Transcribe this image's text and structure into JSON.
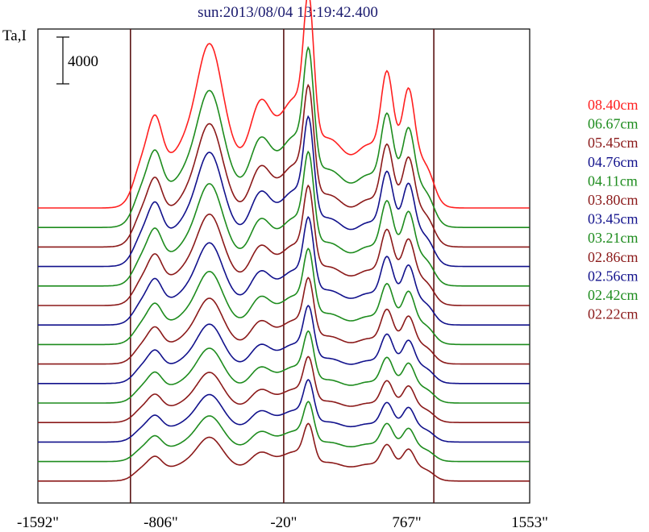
{
  "chart_data": {
    "type": "line",
    "title": "sun:2013/08/04 13:19:42.400",
    "ylabel": "Ta,I",
    "scale_bar_label": "4000",
    "xlim": [
      -1592,
      1553
    ],
    "x_ticks": [
      {
        "value": -1592,
        "label": "-1592\""
      },
      {
        "value": -806,
        "label": "-806\""
      },
      {
        "value": -20,
        "label": "-20\""
      },
      {
        "value": 767,
        "label": "767\""
      },
      {
        "value": 1553,
        "label": "1553\""
      }
    ],
    "vertical_lines": [
      -1000,
      -20,
      940
    ],
    "series": [
      {
        "name": "08.40cm",
        "color": "#ff2020",
        "baseline": -6.84,
        "amplitude": 1.8
      },
      {
        "name": "06.67cm",
        "color": "#1e8c1e",
        "baseline": -6.07,
        "amplitude": 1.5
      },
      {
        "name": "05.45cm",
        "color": "#8b1a1a",
        "baseline": -5.33,
        "amplitude": 1.35
      },
      {
        "name": "04.76cm",
        "color": "#12128c",
        "baseline": -4.56,
        "amplitude": 1.25
      },
      {
        "name": "04.11cm",
        "color": "#1e8c1e",
        "baseline": -3.83,
        "amplitude": 1.12
      },
      {
        "name": "03.80cm",
        "color": "#8b1a1a",
        "baseline": -3.07,
        "amplitude": 1.0
      },
      {
        "name": "03.45cm",
        "color": "#12128c",
        "baseline": -2.32,
        "amplitude": 0.9
      },
      {
        "name": "03.21cm",
        "color": "#1e8c1e",
        "baseline": -1.57,
        "amplitude": 0.8
      },
      {
        "name": "02.86cm",
        "color": "#8b1a1a",
        "baseline": -0.82,
        "amplitude": 0.72
      },
      {
        "name": "02.56cm",
        "color": "#12128c",
        "baseline": -0.07,
        "amplitude": 0.65
      },
      {
        "name": "02.42cm",
        "color": "#1e8c1e",
        "baseline": 0.7,
        "amplitude": 0.6
      },
      {
        "name": "02.22cm",
        "color": "#8b1a1a",
        "baseline": 1.43,
        "amplitude": 0.55
      },
      {
        "name": "",
        "color": "#12128c",
        "baseline": 2.15,
        "amplitude": 0.52
      },
      {
        "name": "",
        "color": "#1e8c1e",
        "baseline": 2.9,
        "amplitude": 0.5
      },
      {
        "name": "",
        "color": "#8b1a1a",
        "baseline": 3.65,
        "amplitude": 0.48
      }
    ]
  }
}
